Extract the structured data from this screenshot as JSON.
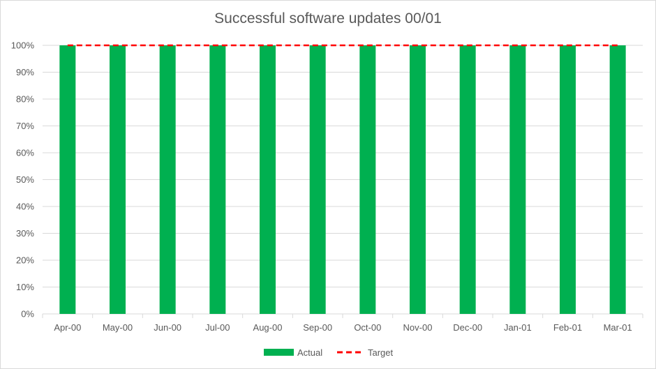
{
  "chart_data": {
    "type": "bar",
    "title": "Successful software updates 00/01",
    "categories": [
      "Apr-00",
      "May-00",
      "Jun-00",
      "Jul-00",
      "Aug-00",
      "Sep-00",
      "Oct-00",
      "Nov-00",
      "Dec-00",
      "Jan-01",
      "Feb-01",
      "Mar-01"
    ],
    "series": [
      {
        "name": "Actual",
        "kind": "bar",
        "color": "#00b050",
        "values": [
          1,
          1,
          1,
          1,
          1,
          1,
          1,
          1,
          1,
          1,
          1,
          1
        ]
      },
      {
        "name": "Target",
        "kind": "dashed-line",
        "color": "#ff0000",
        "values": [
          1,
          1,
          1,
          1,
          1,
          1,
          1,
          1,
          1,
          1,
          1,
          1
        ]
      }
    ],
    "yticks": [
      "0%",
      "10%",
      "20%",
      "30%",
      "40%",
      "50%",
      "60%",
      "70%",
      "80%",
      "90%",
      "100%"
    ],
    "ylim": [
      0,
      1
    ],
    "xlabel": "",
    "ylabel": "",
    "grid": true,
    "legend": "bottom"
  }
}
